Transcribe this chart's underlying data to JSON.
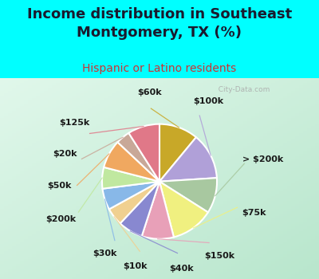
{
  "title": "Income distribution in Southeast\nMontgomery, TX (%)",
  "subtitle": "Hispanic or Latino residents",
  "background_color": "#00ffff",
  "watermark": "City-Data.com",
  "wedge_labels": [
    "$60k",
    "$100k",
    "> $200k",
    "$75k",
    "$150k",
    "$40k",
    "$10k",
    "$30k",
    "$200k",
    "$50k",
    "$20k",
    "$125k"
  ],
  "wedge_values": [
    11,
    13,
    10,
    12,
    9,
    7,
    5,
    6,
    6,
    8,
    4,
    9
  ],
  "wedge_colors": [
    "#c8a828",
    "#b0a0d8",
    "#a8c8a0",
    "#f0f080",
    "#e8a0b8",
    "#8888d0",
    "#f0d090",
    "#88b8e8",
    "#c0e8a0",
    "#f0a860",
    "#c8a898",
    "#e07888"
  ],
  "title_fontsize": 13,
  "subtitle_fontsize": 10,
  "label_fontsize": 8,
  "title_color": "#1a1a2e",
  "subtitle_color": "#cc3333"
}
